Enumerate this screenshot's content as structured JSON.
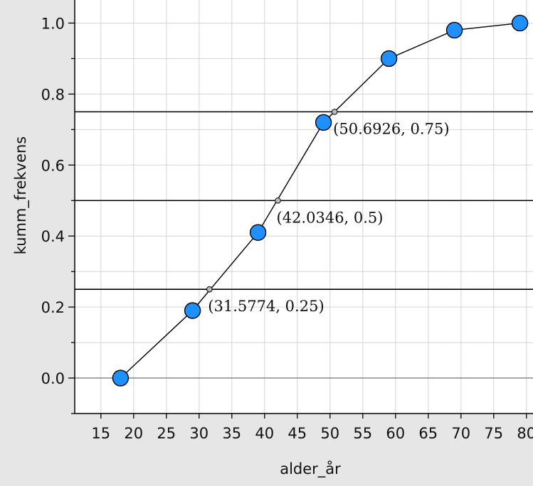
{
  "chart_data": {
    "type": "line",
    "title": "",
    "xlabel": "alder_år",
    "ylabel": "kumm_frekvens",
    "xlim": [
      11,
      81
    ],
    "ylim": [
      -0.1,
      1.065
    ],
    "xticks": [
      15,
      20,
      25,
      30,
      35,
      40,
      45,
      50,
      55,
      60,
      65,
      70,
      75,
      80
    ],
    "xtick_labels": [
      "15",
      "20",
      "25",
      "30",
      "35",
      "40",
      "45",
      "50",
      "55",
      "60",
      "65",
      "70",
      "75",
      "80"
    ],
    "yticks": [
      0.0,
      0.2,
      0.4,
      0.6,
      0.8,
      1.0
    ],
    "ytick_labels": [
      "0.0",
      "0.2",
      "0.4",
      "0.6",
      "0.8",
      "1.0"
    ],
    "grid": true,
    "series": [
      {
        "x": [
          18,
          29,
          39,
          49,
          59,
          69,
          79
        ],
        "y": [
          0.0,
          0.19,
          0.41,
          0.72,
          0.9,
          0.98,
          1.0
        ],
        "color": "#1e90ff"
      }
    ],
    "hlines": [
      0.25,
      0.5,
      0.75
    ],
    "annotations": [
      {
        "x": 31.5774,
        "y": 0.25,
        "label": "(31.5774, 0.25)"
      },
      {
        "x": 42.0346,
        "y": 0.5,
        "label": "(42.0346, 0.5)"
      },
      {
        "x": 50.6926,
        "y": 0.75,
        "label": "(50.6926, 0.75)"
      }
    ]
  }
}
